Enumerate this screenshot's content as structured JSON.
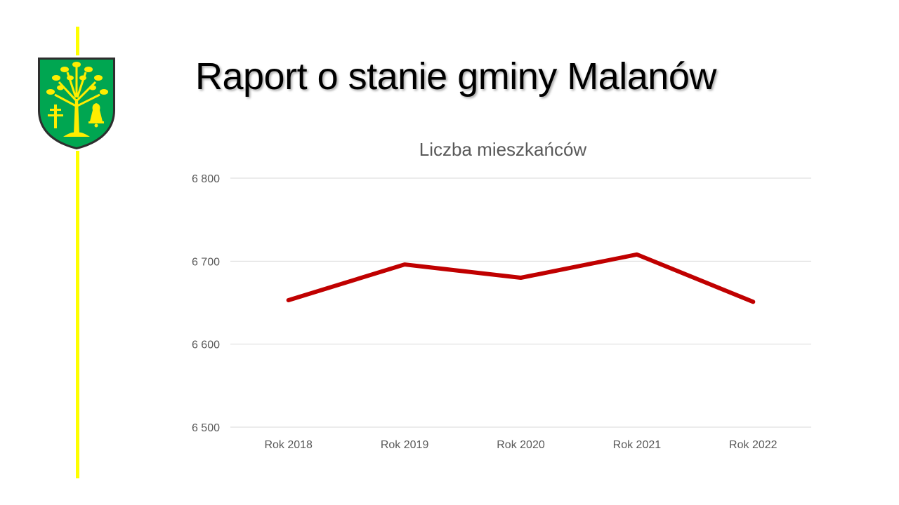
{
  "slide": {
    "title": "Raport o stanie gminy Malanów"
  },
  "colors": {
    "accent_line": "#ffff00",
    "series_line": "#c00000",
    "gridline": "#d9d9d9",
    "coat_field": "#00a651",
    "coat_charge": "#ffed00"
  },
  "logo": {
    "icon": "coat-of-arms-tree-cross-bell-icon"
  },
  "chart_data": {
    "type": "line",
    "title": "Liczba mieszkańców",
    "categories": [
      "Rok 2018",
      "Rok 2019",
      "Rok 2020",
      "Rok 2021",
      "Rok 2022"
    ],
    "series": [
      {
        "values": [
          6653,
          6696,
          6680,
          6708,
          6651
        ]
      }
    ],
    "ylim": [
      6500,
      6800
    ],
    "yticks": [
      6500,
      6600,
      6700,
      6800
    ],
    "ytick_labels": [
      "6 500",
      "6 600",
      "6 700",
      "6 800"
    ],
    "grid": true,
    "legend": "none"
  }
}
